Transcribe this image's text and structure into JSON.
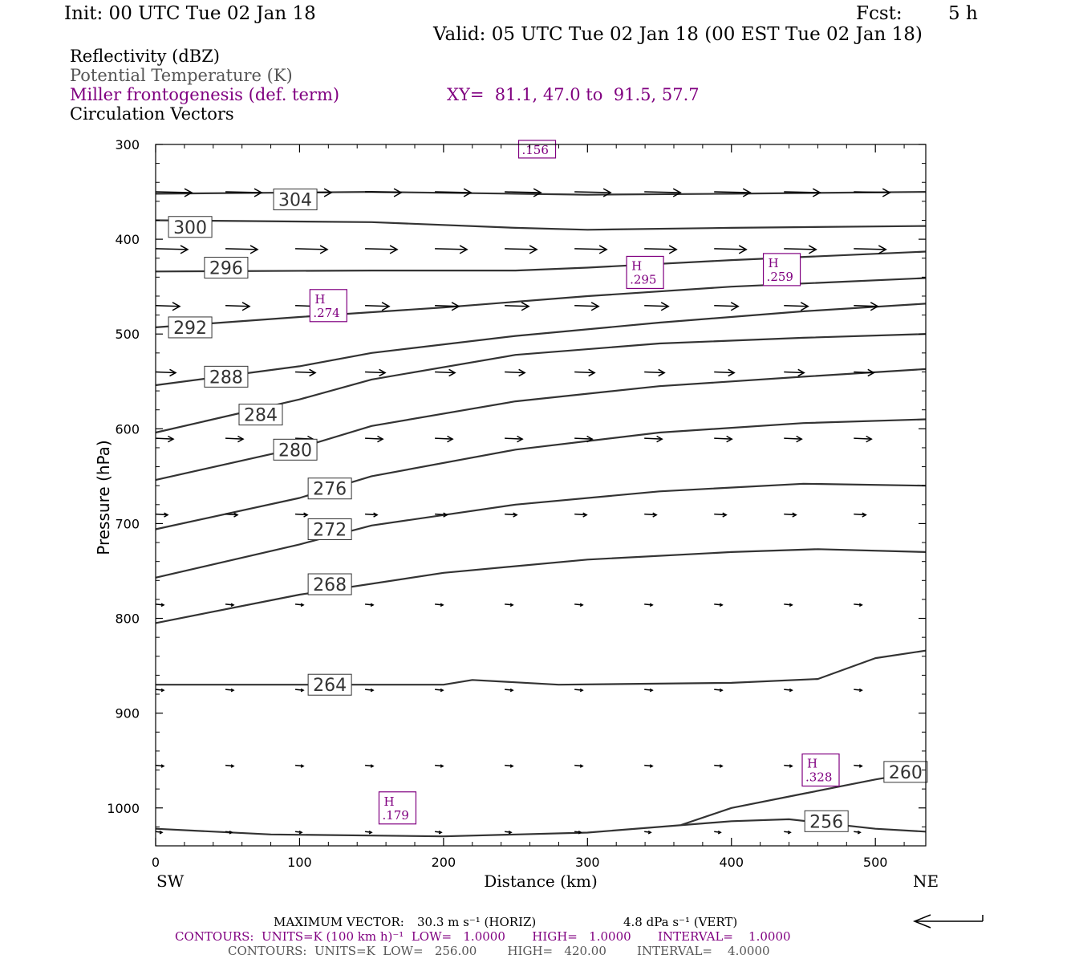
{
  "header": {
    "init": "Init: 00 UTC Tue 02 Jan 18",
    "fcst_label": "Fcst:",
    "fcst_value": "5 h",
    "valid": "Valid: 05 UTC Tue 02 Jan 18 (00 EST Tue 02 Jan 18)"
  },
  "legend": {
    "line1": "Reflectivity (dBZ)",
    "line2": "Potential Temperature (K)",
    "line3": "Miller frontogenesis (def. term)",
    "xy": "XY=  81.1, 47.0 to  91.5, 57.7",
    "line4": "Circulation Vectors"
  },
  "footer": {
    "maxvec_label": "MAXIMUM VECTOR:",
    "maxvec_horiz": "30.3 m s⁻¹ (HORIZ)",
    "maxvec_vert": "4.8 dPa s⁻¹ (VERT)",
    "contours_purple": "CONTOURS:  UNITS=K (100 km h)⁻¹  LOW=   1.0000       HIGH=   1.0000       INTERVAL=    1.0000",
    "contours_black": "CONTOURS:  UNITS=K  LOW=   256.00        HIGH=   420.00        INTERVAL=    4.0000"
  },
  "colors": {
    "purple": "#800080",
    "contour": "#333333",
    "axis": "#000000"
  },
  "chart_data": {
    "type": "line",
    "title": "",
    "xlabel": "Distance (km)",
    "ylabel": "Pressure (hPa)",
    "x_end_labels": {
      "left": "SW",
      "right": "NE"
    },
    "xlim": [
      0,
      535
    ],
    "ylim": [
      1030,
      300
    ],
    "x_ticks": [
      0,
      100,
      200,
      300,
      400,
      500
    ],
    "y_ticks": [
      300,
      400,
      500,
      600,
      700,
      800,
      900,
      1000
    ],
    "series": [
      {
        "name": "304",
        "label_at": [
          97,
          358
        ],
        "points": [
          [
            0,
            352
          ],
          [
            150,
            350
          ],
          [
            250,
            352
          ],
          [
            300,
            353
          ],
          [
            400,
            352
          ],
          [
            535,
            350
          ]
        ]
      },
      {
        "name": "300",
        "label_at": [
          24,
          387
        ],
        "points": [
          [
            0,
            380
          ],
          [
            150,
            382
          ],
          [
            250,
            388
          ],
          [
            300,
            390
          ],
          [
            400,
            388
          ],
          [
            535,
            386
          ]
        ]
      },
      {
        "name": "296",
        "label_at": [
          49,
          430
        ],
        "points": [
          [
            0,
            434
          ],
          [
            150,
            433
          ],
          [
            250,
            433
          ],
          [
            300,
            430
          ],
          [
            400,
            422
          ],
          [
            535,
            413
          ]
        ]
      },
      {
        "name": "292",
        "label_at": [
          24,
          493
        ],
        "points": [
          [
            0,
            493
          ],
          [
            100,
            482
          ],
          [
            200,
            472
          ],
          [
            300,
            460
          ],
          [
            400,
            450
          ],
          [
            535,
            441
          ]
        ]
      },
      {
        "name": "288",
        "label_at": [
          49,
          545
        ],
        "points": [
          [
            0,
            554
          ],
          [
            100,
            534
          ],
          [
            150,
            520
          ],
          [
            250,
            502
          ],
          [
            350,
            488
          ],
          [
            450,
            476
          ],
          [
            535,
            468
          ]
        ]
      },
      {
        "name": "284",
        "label_at": [
          73,
          585
        ],
        "points": [
          [
            0,
            604
          ],
          [
            100,
            569
          ],
          [
            150,
            548
          ],
          [
            250,
            522
          ],
          [
            350,
            510
          ],
          [
            450,
            504
          ],
          [
            535,
            500
          ]
        ]
      },
      {
        "name": "280",
        "label_at": [
          97,
          622
        ],
        "points": [
          [
            0,
            654
          ],
          [
            100,
            620
          ],
          [
            150,
            597
          ],
          [
            250,
            571
          ],
          [
            350,
            555
          ],
          [
            450,
            545
          ],
          [
            535,
            537
          ]
        ]
      },
      {
        "name": "276",
        "label_at": [
          121,
          663
        ],
        "points": [
          [
            0,
            706
          ],
          [
            100,
            673
          ],
          [
            150,
            650
          ],
          [
            250,
            622
          ],
          [
            350,
            604
          ],
          [
            450,
            594
          ],
          [
            535,
            590
          ]
        ]
      },
      {
        "name": "272",
        "label_at": [
          121,
          706
        ],
        "points": [
          [
            0,
            757
          ],
          [
            100,
            722
          ],
          [
            150,
            702
          ],
          [
            250,
            680
          ],
          [
            350,
            666
          ],
          [
            450,
            658
          ],
          [
            535,
            660
          ]
        ]
      },
      {
        "name": "268",
        "label_at": [
          121,
          764
        ],
        "points": [
          [
            0,
            805
          ],
          [
            100,
            775
          ],
          [
            200,
            752
          ],
          [
            300,
            738
          ],
          [
            400,
            730
          ],
          [
            460,
            727
          ],
          [
            535,
            730
          ]
        ]
      },
      {
        "name": "264",
        "label_at": [
          121,
          870
        ],
        "points": [
          [
            0,
            870
          ],
          [
            200,
            870
          ],
          [
            220,
            865
          ],
          [
            280,
            870
          ],
          [
            400,
            868
          ],
          [
            460,
            864
          ],
          [
            500,
            842
          ],
          [
            535,
            834
          ]
        ]
      },
      {
        "name": "260",
        "label_at": [
          521,
          962
        ],
        "points": [
          [
            365,
            1018
          ],
          [
            400,
            1000
          ],
          [
            450,
            985
          ],
          [
            500,
            970
          ],
          [
            535,
            961
          ]
        ]
      },
      {
        "name": "256",
        "label_at": [
          466,
          1014
        ],
        "points": [
          [
            0,
            1022
          ],
          [
            80,
            1028
          ],
          [
            200,
            1030
          ],
          [
            300,
            1026
          ],
          [
            400,
            1014
          ],
          [
            440,
            1012
          ],
          [
            500,
            1022
          ],
          [
            535,
            1025
          ]
        ]
      }
    ],
    "frontogenesis_maxima": [
      {
        "label": "H",
        "value": ".274",
        "x": 120,
        "p": 470
      },
      {
        "label": "H",
        "value": ".295",
        "x": 340,
        "p": 435
      },
      {
        "label": "H",
        "value": ".259",
        "x": 435,
        "p": 432
      },
      {
        "label": "H",
        "value": ".328",
        "x": 462,
        "p": 960
      },
      {
        "label": "H",
        "value": ".179",
        "x": 168,
        "p": 1000
      },
      {
        "label": "",
        "value": ".156",
        "x": 265,
        "p": 305
      }
    ],
    "vectors": [
      {
        "p": 350,
        "x_start": 0,
        "u": 45,
        "w": 0
      },
      {
        "p": 410,
        "x_start": 0,
        "u": 40,
        "w": 0
      },
      {
        "p": 470,
        "x_start": 0,
        "u": 30,
        "w": 0
      },
      {
        "p": 540,
        "x_start": 0,
        "u": 25,
        "w": 0
      },
      {
        "p": 610,
        "x_start": 0,
        "u": 22,
        "w": 0
      },
      {
        "p": 690,
        "x_start": 0,
        "u": 15,
        "w": 0
      },
      {
        "p": 785,
        "x_start": 0,
        "u": 10,
        "w": 0
      },
      {
        "p": 875,
        "x_start": 0,
        "u": 10,
        "w": 0
      },
      {
        "p": 955,
        "x_start": 0,
        "u": 10,
        "w": 0
      },
      {
        "p": 1025,
        "x_start": 0,
        "u": 8,
        "w": 0
      }
    ],
    "grid": false
  }
}
